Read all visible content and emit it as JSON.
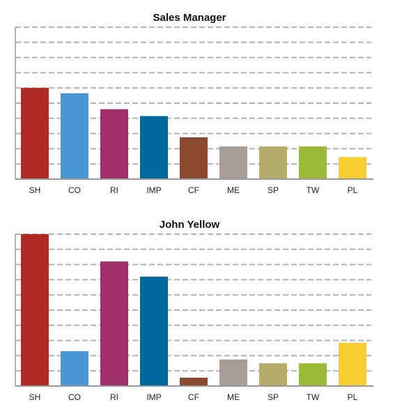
{
  "chart_data": [
    {
      "type": "bar",
      "title": "Sales Manager",
      "categories": [
        "SH",
        "CO",
        "RI",
        "IMP",
        "CF",
        "ME",
        "SP",
        "TW",
        "PL"
      ],
      "values": [
        6,
        5.65,
        4.6,
        4.15,
        2.75,
        2.15,
        2.15,
        2.15,
        1.45
      ],
      "ylim": [
        0,
        10
      ],
      "grid": true,
      "colors": [
        "#b22a25",
        "#4b97d5",
        "#a0306c",
        "#00699e",
        "#8b4a2f",
        "#a89e98",
        "#b5ab6a",
        "#9aba38",
        "#f8ce32"
      ]
    },
    {
      "type": "bar",
      "title": "John Yellow",
      "categories": [
        "SH",
        "CO",
        "RI",
        "IMP",
        "CF",
        "ME",
        "SP",
        "TW",
        "PL"
      ],
      "values": [
        10,
        2.3,
        8.2,
        7.2,
        0.55,
        1.75,
        1.5,
        1.5,
        2.85
      ],
      "ylim": [
        0,
        10
      ],
      "grid": true,
      "colors": [
        "#b22a25",
        "#4b97d5",
        "#a0306c",
        "#00699e",
        "#8b4a2f",
        "#a89e98",
        "#b5ab6a",
        "#9aba38",
        "#f8ce32"
      ]
    }
  ]
}
